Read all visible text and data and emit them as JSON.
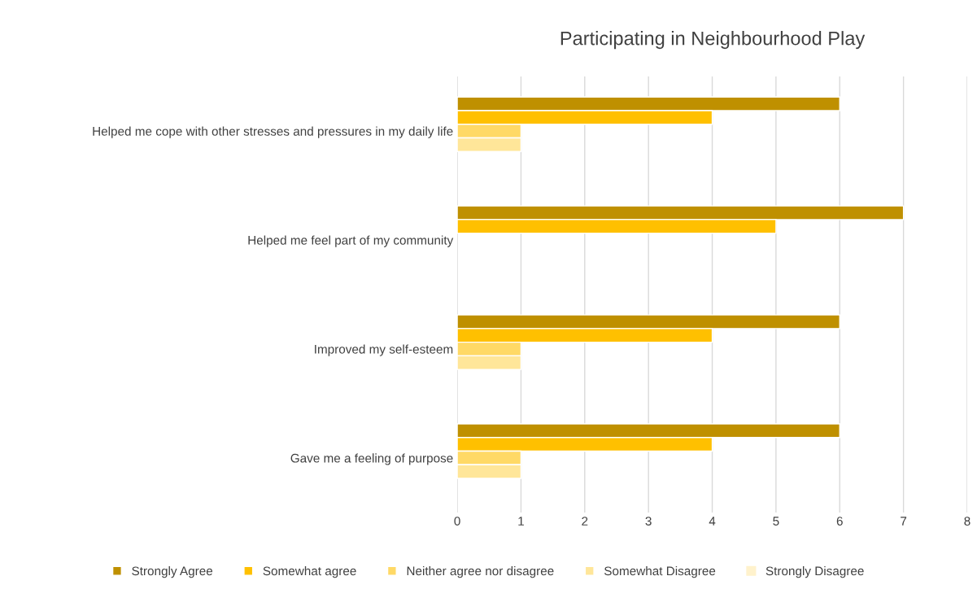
{
  "chart_data": {
    "type": "bar",
    "orientation": "horizontal",
    "title": "Participating in Neighbourhood Play",
    "categories": [
      "Helped me cope with other stresses and pressures in my daily life",
      "Helped me feel part of my community",
      "Improved my self-esteem",
      "Gave me a feeling of purpose"
    ],
    "series": [
      {
        "name": "Strongly Agree",
        "color": "#bf9000",
        "values": [
          6,
          7,
          6,
          6
        ]
      },
      {
        "name": "Somewhat agree",
        "color": "#ffc000",
        "values": [
          4,
          5,
          4,
          4
        ]
      },
      {
        "name": "Neither agree nor disagree",
        "color": "#ffd966",
        "values": [
          1,
          null,
          1,
          1
        ]
      },
      {
        "name": "Somewhat Disagree",
        "color": "#ffe699",
        "values": [
          1,
          null,
          1,
          1
        ]
      },
      {
        "name": "Strongly Disagree",
        "color": "#fff2cc",
        "values": [
          null,
          null,
          null,
          null
        ]
      }
    ],
    "xlim": [
      0,
      8
    ],
    "xticks": [
      0,
      1,
      2,
      3,
      4,
      5,
      6,
      7,
      8
    ],
    "grid": "x",
    "legend": "bottom"
  }
}
